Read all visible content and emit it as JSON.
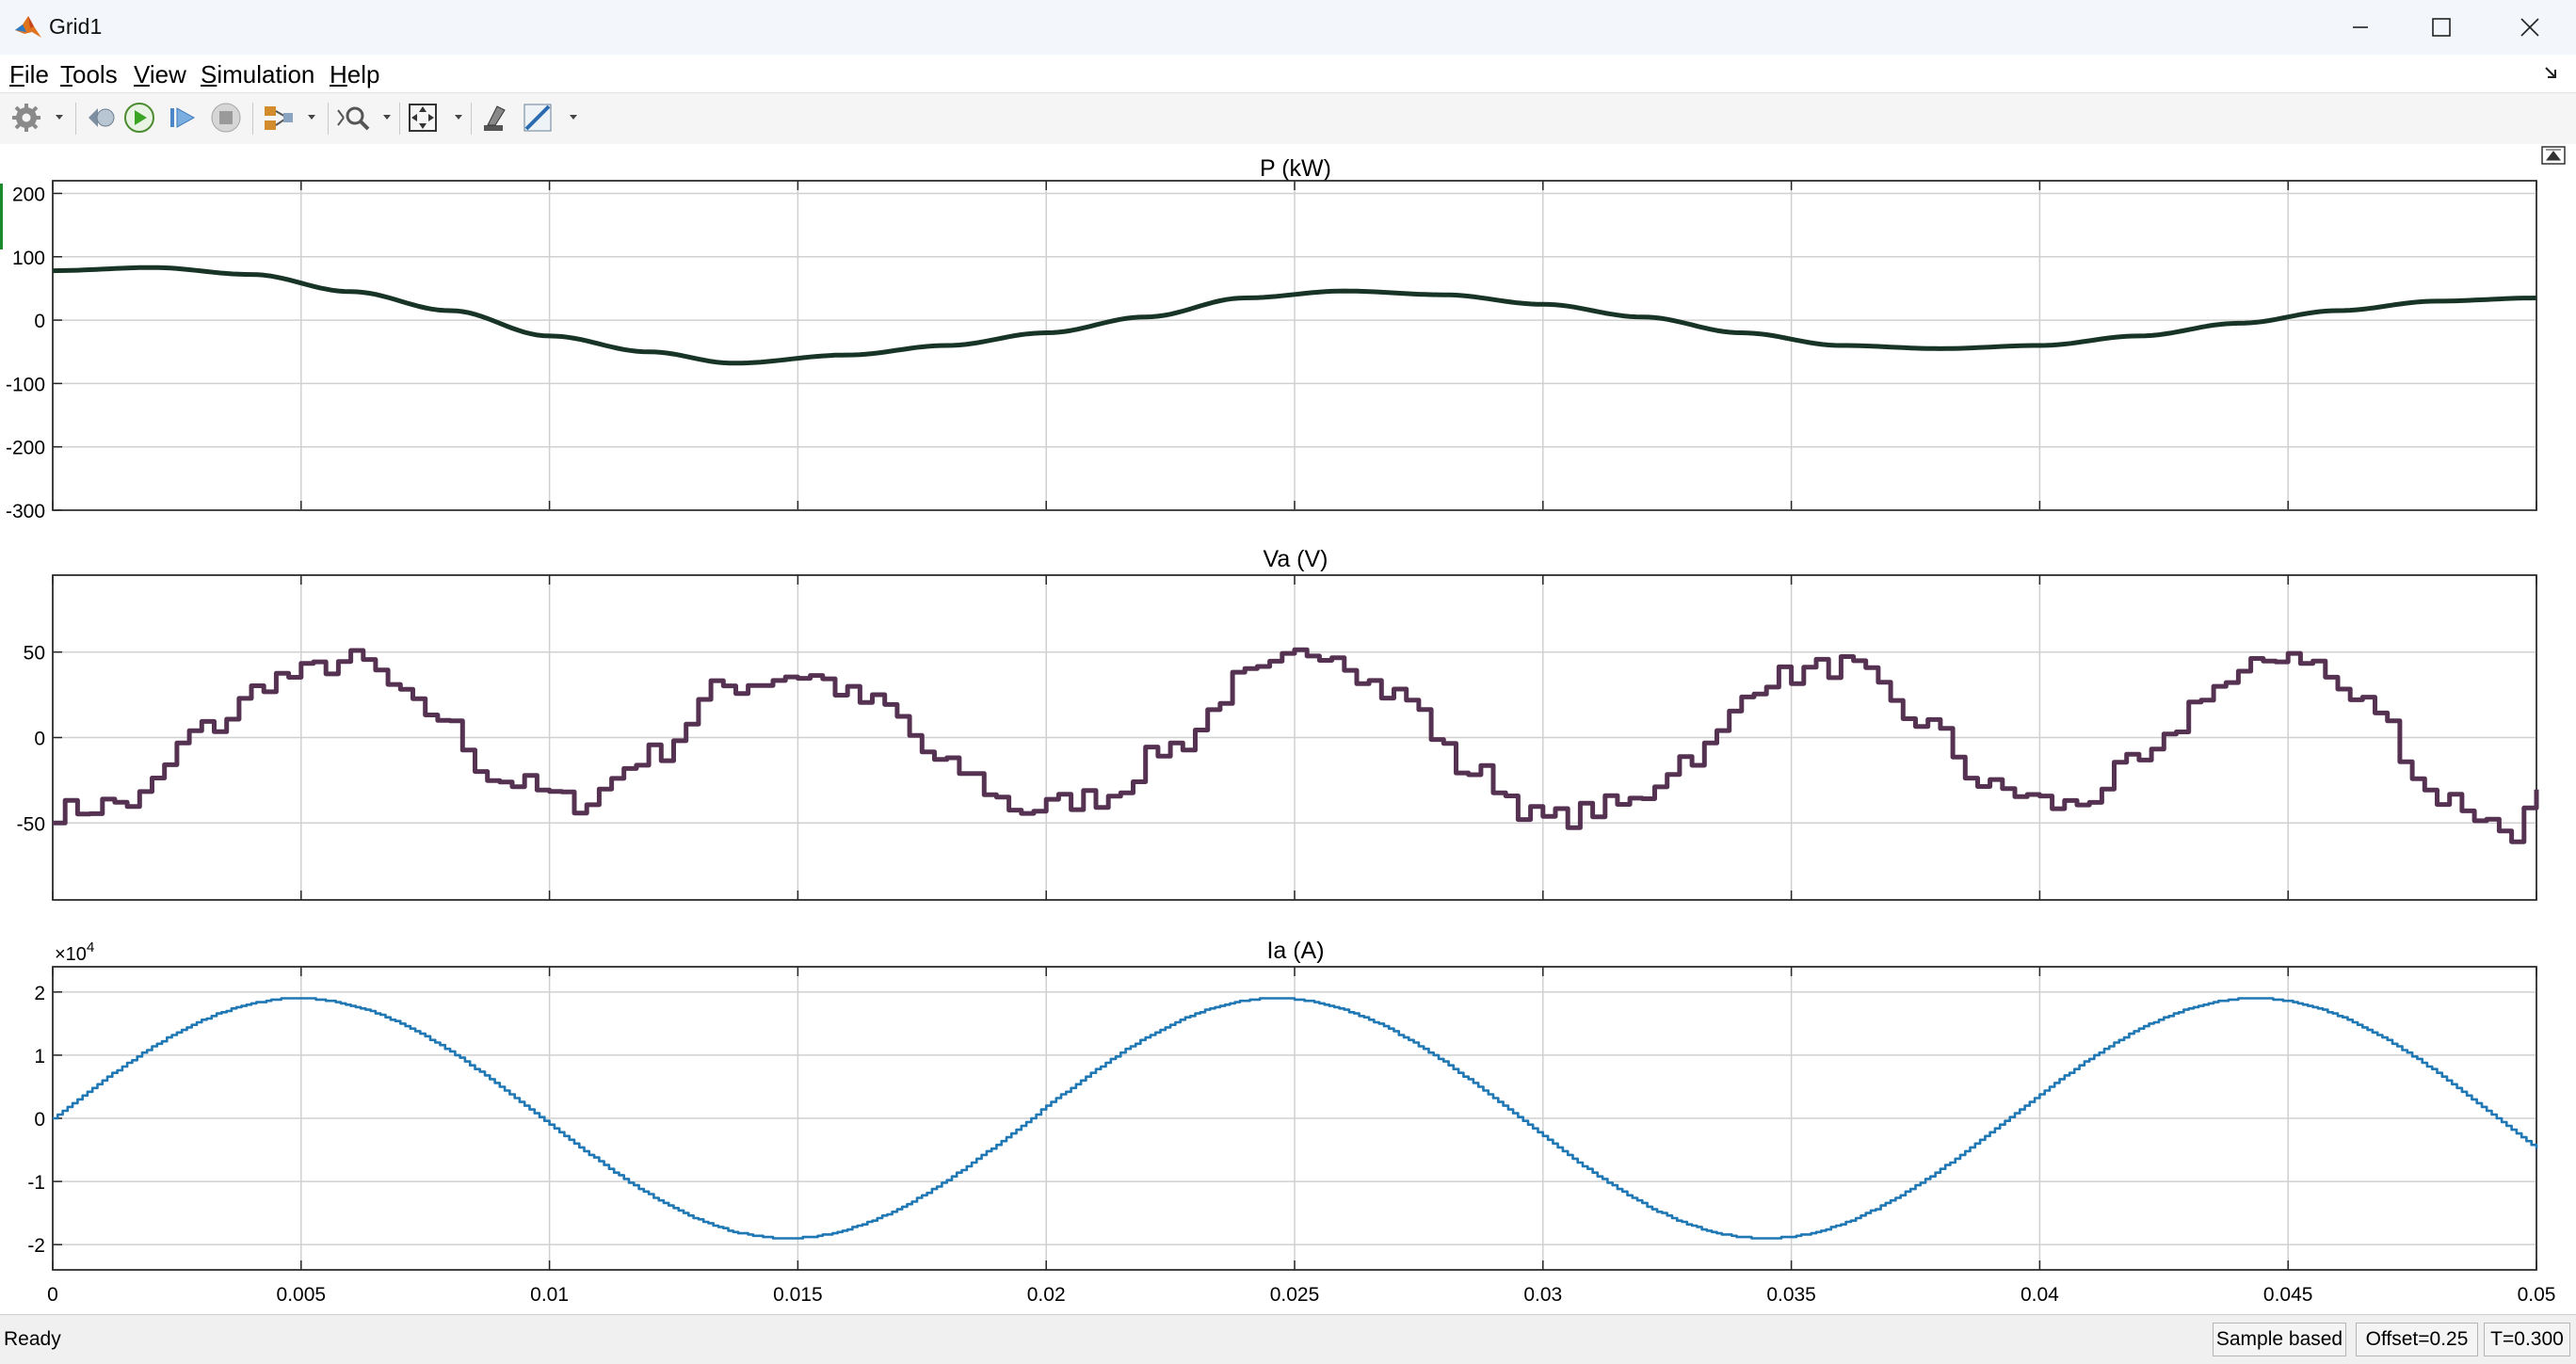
{
  "window": {
    "title": "Grid1",
    "app_icon": "matlab-logo-icon"
  },
  "menu": {
    "items": [
      {
        "label": "File",
        "mnemonic": "F",
        "rest": "ile"
      },
      {
        "label": "Tools",
        "mnemonic": "T",
        "rest": "ools"
      },
      {
        "label": "View",
        "mnemonic": "V",
        "rest": "iew"
      },
      {
        "label": "Simulation",
        "mnemonic": "S",
        "rest": "imulation"
      },
      {
        "label": "Help",
        "mnemonic": "H",
        "rest": "elp"
      }
    ]
  },
  "toolbar": {
    "buttons": [
      "settings-gear-icon",
      "step-back-icon",
      "run-icon",
      "step-forward-icon",
      "stop-icon",
      "highlight-signal-icon",
      "zoom-icon",
      "fit-to-view-icon",
      "style-icon",
      "measurements-icon"
    ]
  },
  "colors": {
    "p_trace": "#183427",
    "va_trace": "#553252",
    "ia_trace": "#1f77b4",
    "grid": "#d0d0d0"
  },
  "chart_data": [
    {
      "type": "line",
      "title": "P (kW)",
      "x_range": [
        0,
        0.05
      ],
      "ylim": [
        -300,
        220
      ],
      "y_ticks": [
        200,
        100,
        0,
        -100,
        -200,
        -300
      ],
      "x_ticks_count": 10,
      "grid": true,
      "series": [
        {
          "x": [
            0,
            0.002,
            0.004,
            0.006,
            0.008,
            0.01,
            0.012,
            0.0137,
            0.016,
            0.018,
            0.02,
            0.022,
            0.024,
            0.026,
            0.028,
            0.03,
            0.032,
            0.034,
            0.036,
            0.038,
            0.04,
            0.042,
            0.044,
            0.046,
            0.048,
            0.05
          ],
          "y": [
            78,
            83,
            72,
            45,
            15,
            -25,
            -50,
            -68,
            -55,
            -40,
            -20,
            5,
            35,
            46,
            40,
            25,
            5,
            -20,
            -40,
            -45,
            -40,
            -25,
            -5,
            15,
            30,
            35
          ]
        }
      ]
    },
    {
      "type": "line",
      "title": "Va (V)",
      "x_range": [
        0,
        0.05
      ],
      "ylim": [
        -95,
        95
      ],
      "y_ticks": [
        50,
        0,
        -50
      ],
      "x_ticks_count": 10,
      "grid": true,
      "series": [
        {
          "x": [
            0,
            0.0015,
            0.003,
            0.0045,
            0.006,
            0.0075,
            0.009,
            0.0105,
            0.012,
            0.0135,
            0.015,
            0.0165,
            0.018,
            0.0195,
            0.021,
            0.0225,
            0.024,
            0.0255,
            0.027,
            0.0285,
            0.03,
            0.0315,
            0.033,
            0.0345,
            0.036,
            0.0375,
            0.039,
            0.0405,
            0.042,
            0.0435,
            0.045,
            0.0465,
            0.048,
            0.0495,
            0.05
          ],
          "y": [
            -43,
            -38,
            5,
            35,
            45,
            15,
            -25,
            -38,
            -10,
            30,
            37,
            20,
            -18,
            -42,
            -35,
            -5,
            35,
            52,
            25,
            -20,
            -48,
            -40,
            -10,
            35,
            42,
            10,
            -30,
            -40,
            -15,
            30,
            50,
            20,
            -35,
            -55,
            -35
          ]
        }
      ]
    },
    {
      "type": "line",
      "title": "Ia (A)",
      "x_range": [
        0,
        0.05
      ],
      "ylim": [
        -2.4,
        2.4
      ],
      "y_ticks": [
        2,
        1,
        0,
        -1,
        -2
      ],
      "y_multiplier_text": "×10",
      "y_multiplier_exp": "4",
      "x_ticks": [
        "0",
        "0.005",
        "0.01",
        "0.015",
        "0.02",
        "0.025",
        "0.03",
        "0.035",
        "0.04",
        "0.045",
        "0.05"
      ],
      "grid": true,
      "series": [
        {
          "amplitude": 1.9,
          "frequency_hz": 50.8,
          "phase": 0
        }
      ]
    }
  ],
  "status": {
    "text": "Ready",
    "sample_based": "Sample based",
    "offset": "Offset=0.25",
    "time": "T=0.300"
  }
}
